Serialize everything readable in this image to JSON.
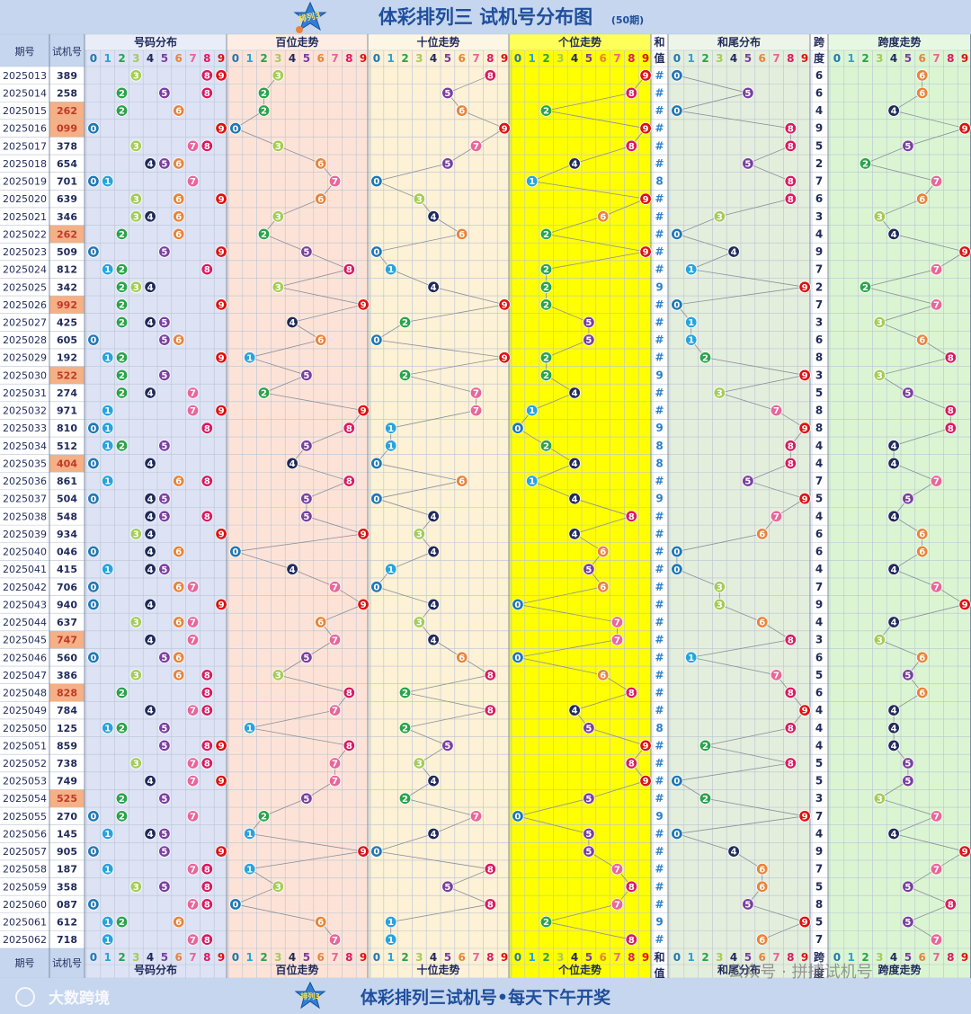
{
  "header": {
    "logo_text": "排列3",
    "title": "体彩排列三 试机号分布图",
    "subtitle": "(50期)"
  },
  "table_headers": {
    "issue": "期号",
    "number": "试机号",
    "dist": "号码分布",
    "hundreds": "百位走势",
    "tens": "十位走势",
    "units": "个位走势",
    "sum_top": "和",
    "sum_bottom": "值",
    "sum_tail": "和尾分布",
    "span_top": "跨",
    "span_bottom": "度",
    "span_trend": "跨度走势",
    "sum_marker": "#"
  },
  "footer": {
    "brand": "大数跨境",
    "slogan": "体彩排列三试机号•每天下午开奖",
    "watermark": "公众号 · 拼搏试机号"
  },
  "colors": {
    "header_bg": "#c5d6ee",
    "title": "#1f4e9c",
    "dist_bg": "#dde3f5",
    "hundreds_bg": "#fde3d7",
    "tens_bg": "#fdf1d6",
    "units_bg": "#ffff00",
    "sum_bg": "#ffffff",
    "tail_bg": "#e4eedd",
    "span_bg": "#dbf5d3",
    "digit_colors": [
      "#1f77b4",
      "#29a3dc",
      "#2aa34a",
      "#a4cc56",
      "#1f2a5a",
      "#7a3fa0",
      "#e8843a",
      "#e8669a",
      "#d81b60",
      "#e01010"
    ],
    "highlight_number": "#f5b085"
  },
  "chart_data": {
    "type": "table",
    "title": "体彩排列三 试机号分布图",
    "columns": [
      "期号",
      "试机号",
      "号码分布",
      "百位走势",
      "十位走势",
      "个位走势",
      "和值",
      "和尾分布",
      "跨度",
      "跨度走势"
    ],
    "digit_labels": [
      "0",
      "1",
      "2",
      "3",
      "4",
      "5",
      "6",
      "7",
      "8",
      "9"
    ],
    "rows": [
      {
        "issue": "2025013",
        "number": "389",
        "sum": "#",
        "span": "6",
        "highlight": false
      },
      {
        "issue": "2025014",
        "number": "258",
        "sum": "#",
        "span": "6",
        "highlight": false
      },
      {
        "issue": "2025015",
        "number": "262",
        "sum": "#",
        "span": "4",
        "highlight": true
      },
      {
        "issue": "2025016",
        "number": "099",
        "sum": "#",
        "span": "9",
        "highlight": true
      },
      {
        "issue": "2025017",
        "number": "378",
        "sum": "#",
        "span": "5",
        "highlight": false
      },
      {
        "issue": "2025018",
        "number": "654",
        "sum": "#",
        "span": "2",
        "highlight": false
      },
      {
        "issue": "2025019",
        "number": "701",
        "sum": "8",
        "span": "7",
        "highlight": false
      },
      {
        "issue": "2025020",
        "number": "639",
        "sum": "#",
        "span": "6",
        "highlight": false
      },
      {
        "issue": "2025021",
        "number": "346",
        "sum": "#",
        "span": "3",
        "highlight": false
      },
      {
        "issue": "2025022",
        "number": "262",
        "sum": "#",
        "span": "4",
        "highlight": true
      },
      {
        "issue": "2025023",
        "number": "509",
        "sum": "#",
        "span": "9",
        "highlight": false
      },
      {
        "issue": "2025024",
        "number": "812",
        "sum": "#",
        "span": "7",
        "highlight": false
      },
      {
        "issue": "2025025",
        "number": "342",
        "sum": "9",
        "span": "2",
        "highlight": false
      },
      {
        "issue": "2025026",
        "number": "992",
        "sum": "#",
        "span": "7",
        "highlight": true
      },
      {
        "issue": "2025027",
        "number": "425",
        "sum": "#",
        "span": "3",
        "highlight": false
      },
      {
        "issue": "2025028",
        "number": "605",
        "sum": "#",
        "span": "6",
        "highlight": false
      },
      {
        "issue": "2025029",
        "number": "192",
        "sum": "#",
        "span": "8",
        "highlight": false
      },
      {
        "issue": "2025030",
        "number": "522",
        "sum": "9",
        "span": "3",
        "highlight": true
      },
      {
        "issue": "2025031",
        "number": "274",
        "sum": "#",
        "span": "5",
        "highlight": false
      },
      {
        "issue": "2025032",
        "number": "971",
        "sum": "#",
        "span": "8",
        "highlight": false
      },
      {
        "issue": "2025033",
        "number": "810",
        "sum": "9",
        "span": "8",
        "highlight": false
      },
      {
        "issue": "2025034",
        "number": "512",
        "sum": "8",
        "span": "4",
        "highlight": false
      },
      {
        "issue": "2025035",
        "number": "404",
        "sum": "8",
        "span": "4",
        "highlight": true
      },
      {
        "issue": "2025036",
        "number": "861",
        "sum": "#",
        "span": "7",
        "highlight": false
      },
      {
        "issue": "2025037",
        "number": "504",
        "sum": "9",
        "span": "5",
        "highlight": false
      },
      {
        "issue": "2025038",
        "number": "548",
        "sum": "#",
        "span": "4",
        "highlight": false
      },
      {
        "issue": "2025039",
        "number": "934",
        "sum": "#",
        "span": "6",
        "highlight": false
      },
      {
        "issue": "2025040",
        "number": "046",
        "sum": "#",
        "span": "6",
        "highlight": false
      },
      {
        "issue": "2025041",
        "number": "415",
        "sum": "#",
        "span": "4",
        "highlight": false
      },
      {
        "issue": "2025042",
        "number": "706",
        "sum": "#",
        "span": "7",
        "highlight": false
      },
      {
        "issue": "2025043",
        "number": "940",
        "sum": "#",
        "span": "9",
        "highlight": false
      },
      {
        "issue": "2025044",
        "number": "637",
        "sum": "#",
        "span": "4",
        "highlight": false
      },
      {
        "issue": "2025045",
        "number": "747",
        "sum": "#",
        "span": "3",
        "highlight": true
      },
      {
        "issue": "2025046",
        "number": "560",
        "sum": "#",
        "span": "6",
        "highlight": false
      },
      {
        "issue": "2025047",
        "number": "386",
        "sum": "#",
        "span": "5",
        "highlight": false
      },
      {
        "issue": "2025048",
        "number": "828",
        "sum": "#",
        "span": "6",
        "highlight": true
      },
      {
        "issue": "2025049",
        "number": "784",
        "sum": "#",
        "span": "4",
        "highlight": false
      },
      {
        "issue": "2025050",
        "number": "125",
        "sum": "8",
        "span": "4",
        "highlight": false
      },
      {
        "issue": "2025051",
        "number": "859",
        "sum": "#",
        "span": "4",
        "highlight": false
      },
      {
        "issue": "2025052",
        "number": "738",
        "sum": "#",
        "span": "5",
        "highlight": false
      },
      {
        "issue": "2025053",
        "number": "749",
        "sum": "#",
        "span": "5",
        "highlight": false
      },
      {
        "issue": "2025054",
        "number": "525",
        "sum": "#",
        "span": "3",
        "highlight": true
      },
      {
        "issue": "2025055",
        "number": "270",
        "sum": "9",
        "span": "7",
        "highlight": false
      },
      {
        "issue": "2025056",
        "number": "145",
        "sum": "#",
        "span": "4",
        "highlight": false
      },
      {
        "issue": "2025057",
        "number": "905",
        "sum": "#",
        "span": "9",
        "highlight": false
      },
      {
        "issue": "2025058",
        "number": "187",
        "sum": "#",
        "span": "7",
        "highlight": false
      },
      {
        "issue": "2025059",
        "number": "358",
        "sum": "#",
        "span": "5",
        "highlight": false
      },
      {
        "issue": "2025060",
        "number": "087",
        "sum": "#",
        "span": "8",
        "highlight": false
      },
      {
        "issue": "2025061",
        "number": "612",
        "sum": "9",
        "span": "5",
        "highlight": false
      },
      {
        "issue": "2025062",
        "number": "718",
        "sum": "#",
        "span": "7",
        "highlight": false
      }
    ]
  }
}
